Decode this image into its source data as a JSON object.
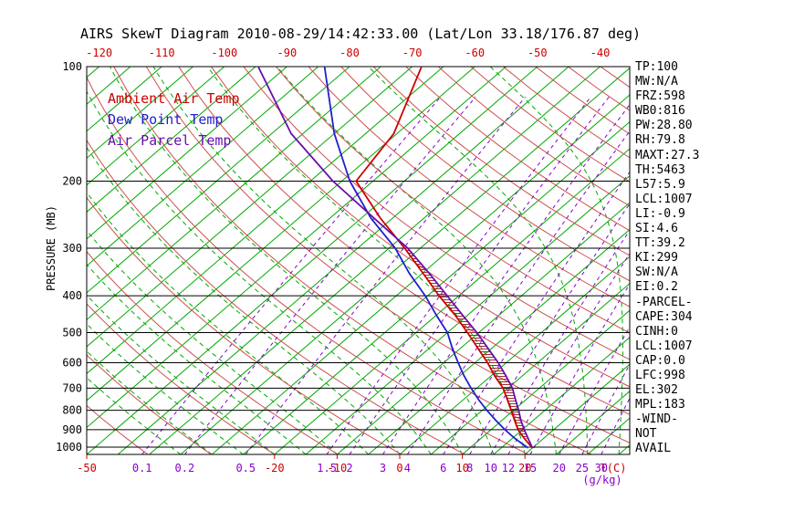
{
  "title": "AIRS SkewT Diagram 2010-08-29/14:42:33.00 (Lat/Lon 33.18/176.87 deg)",
  "colors": {
    "isotherm_green": "#00A800",
    "dry_adiabat_red": "#CC5050",
    "mixing_ratio_purple": "#8800CC",
    "temp_red": "#CC0000",
    "dewpoint_blue": "#2020CC",
    "parcel_purple": "#6A0DAD",
    "axis_black": "#000000",
    "cape_hatch_red": "#A03030"
  },
  "legend": {
    "items": [
      {
        "label": "Ambient Air Temp",
        "color": "#CC0000"
      },
      {
        "label": "Dew Point Temp",
        "color": "#2020CC"
      },
      {
        "label": "Air Parcel Temp",
        "color": "#6A0DAD"
      }
    ]
  },
  "axes": {
    "y_title": "PRESSURE (MB)",
    "pressure_labels_mb": [
      100,
      200,
      300,
      400,
      500,
      600,
      700,
      800,
      900,
      1000
    ],
    "top_temp_labels_c": [
      -120,
      -110,
      -100,
      -90,
      -80,
      -70,
      -60,
      -50,
      -40
    ],
    "bottom_temp_labels_c": [
      -50,
      -20,
      -10,
      0,
      10,
      20
    ],
    "bottom_temp_unit": "T(C)",
    "mixing_ratio_labels_gkg": [
      0.1,
      0.2,
      0.5,
      1.5,
      2,
      3,
      4,
      6,
      8,
      10,
      12,
      15,
      20,
      25,
      30
    ],
    "mixing_ratio_unit": "(g/kg)"
  },
  "stats_panel": {
    "lines": [
      "TP:100",
      "MW:N/A",
      "FRZ:598",
      "WB0:816",
      "PW:28.80",
      "RH:79.8",
      "MAXT:27.3",
      "TH:5463",
      "L57:5.9",
      "LCL:1007",
      "LI:-0.9",
      "SI:4.6",
      "TT:39.2",
      "KI:299",
      "SW:N/A",
      "EI:0.2",
      "-PARCEL-",
      "CAPE:304",
      "CINH:0",
      "LCL:1007",
      "CAP:0.0",
      "LFC:998",
      "EL:302",
      "MPL:183",
      "-WIND-",
      "NOT",
      "AVAIL"
    ]
  },
  "chart_data": {
    "type": "line",
    "variant": "skew-t-log-p",
    "title": "AIRS SkewT Diagram 2010-08-29/14:42:33.00 (Lat/Lon 33.18/176.87 deg)",
    "xlabel": "Temperature (C)",
    "ylabel": "PRESSURE (MB)",
    "y_axis": {
      "scale": "log",
      "range_mb": [
        100,
        1045
      ],
      "gridlines_mb": [
        100,
        200,
        300,
        400,
        500,
        600,
        700,
        800,
        900,
        1000
      ]
    },
    "x_axis": {
      "temp_at_bottom_left_c": -50,
      "temp_at_bottom_right_c": 37,
      "skewed": true
    },
    "legend_position": "top-left",
    "sounding": {
      "pressure_mb": [
        1005,
        950,
        900,
        850,
        800,
        750,
        700,
        650,
        600,
        550,
        500,
        450,
        400,
        350,
        300,
        250,
        200,
        150,
        100
      ],
      "series": [
        {
          "name": "Ambient Air Temp",
          "values_c": [
            20.0,
            17.0,
            14.3,
            12.0,
            9.6,
            7.0,
            4.2,
            0.6,
            -3.0,
            -7.2,
            -11.8,
            -17.0,
            -23.2,
            -29.8,
            -37.5,
            -47.0,
            -57.7,
            -60.5,
            -68.5
          ]
        },
        {
          "name": "Dew Point Temp",
          "values_c": [
            19.3,
            15.5,
            12.2,
            9.0,
            5.7,
            2.4,
            -0.9,
            -4.3,
            -7.7,
            -11.3,
            -15.0,
            -20.0,
            -25.4,
            -32.0,
            -39.0,
            -48.5,
            -58.7,
            -70.0,
            -84.0
          ]
        },
        {
          "name": "Air Parcel Temp",
          "values_c": [
            20.0,
            17.6,
            15.3,
            13.0,
            10.8,
            8.3,
            5.7,
            2.4,
            -1.3,
            -5.6,
            -10.3,
            -15.8,
            -21.9,
            -28.8,
            -37.0,
            -48.0,
            -61.4,
            -76.9,
            -94.6
          ]
        }
      ]
    },
    "cape_region": {
      "between": [
        "Air Parcel Temp",
        "Ambient Air Temp"
      ],
      "pressure_range_mb": [
        950,
        300
      ],
      "hatch": "horizontal"
    },
    "background": {
      "isotherms_c": {
        "from": -140,
        "to": 45,
        "step": 5,
        "style": "solid-green"
      },
      "dry_adiabats_theta_k": {
        "from": 230,
        "to": 460,
        "step": 10,
        "style": "solid-red"
      },
      "moist_adiabats_start_c": {
        "from": -35,
        "to": 35,
        "step": 5,
        "style": "dashed-green"
      },
      "mixing_ratio_lines_gkg": [
        0.1,
        0.2,
        0.5,
        1.5,
        2,
        3,
        4,
        6,
        8,
        10,
        12,
        15,
        20,
        25,
        30
      ],
      "mixing_ratio_style": "dashed-purple"
    }
  }
}
